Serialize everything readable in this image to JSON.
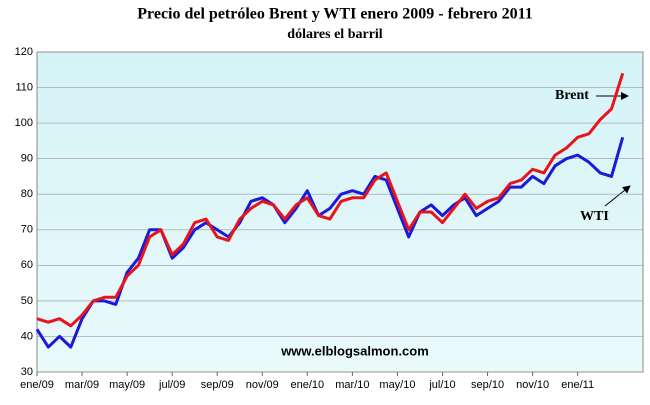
{
  "chart_data": {
    "type": "line",
    "title": "Precio del petróleo Brent y WTI enero 2009 - febrero 2011",
    "subtitle": "dólares el barril",
    "annotations": [
      "Brent",
      "WTI",
      "www.elblogsalmon.com"
    ],
    "categories": [
      "ene/09",
      null,
      null,
      null,
      "mar/09",
      null,
      null,
      null,
      "may/09",
      null,
      null,
      null,
      "jul/09",
      null,
      null,
      null,
      "sep/09",
      null,
      null,
      null,
      "nov/09",
      null,
      null,
      null,
      "ene/10",
      null,
      null,
      null,
      "mar/10",
      null,
      null,
      null,
      "may/10",
      null,
      null,
      null,
      "jul/10",
      null,
      null,
      null,
      "sep/10",
      null,
      null,
      null,
      "nov/10",
      null,
      null,
      null,
      "ene/11",
      null,
      null,
      null,
      null
    ],
    "series": [
      {
        "name": "Brent",
        "color": "#e8141c",
        "values": [
          45,
          44,
          45,
          43,
          46,
          50,
          51,
          51,
          57,
          60,
          68,
          70,
          63,
          66,
          72,
          73,
          68,
          67,
          73,
          76,
          78,
          77,
          73,
          77,
          79,
          74,
          73,
          78,
          79,
          79,
          84,
          86,
          78,
          70,
          75,
          75,
          72,
          76,
          80,
          76,
          78,
          79,
          83,
          84,
          87,
          86,
          91,
          93,
          96,
          97,
          101,
          104,
          114
        ]
      },
      {
        "name": "WTI",
        "color": "#1a1adb",
        "values": [
          42,
          37,
          40,
          37,
          45,
          50,
          50,
          49,
          58,
          62,
          70,
          70,
          62,
          65,
          70,
          72,
          70,
          68,
          72,
          78,
          79,
          77,
          72,
          76,
          81,
          74,
          76,
          80,
          81,
          80,
          85,
          84,
          76,
          68,
          75,
          77,
          74,
          77,
          79,
          74,
          76,
          78,
          82,
          82,
          85,
          83,
          88,
          90,
          91,
          89,
          86,
          85,
          96
        ]
      }
    ],
    "ylim": [
      30,
      120
    ],
    "yticks": [
      30,
      40,
      50,
      60,
      70,
      80,
      90,
      100,
      110,
      120
    ],
    "grid": true
  }
}
